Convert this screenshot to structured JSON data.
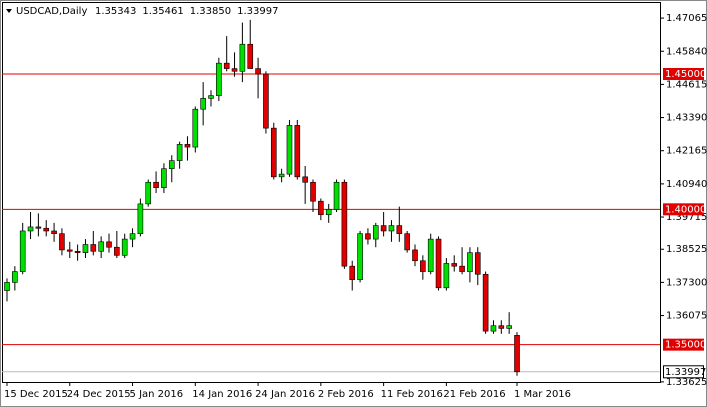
{
  "chart_data": {
    "type": "candlestick",
    "title": "USDCAD,Daily",
    "header_values": [
      "1.35343",
      "1.35461",
      "1.33850",
      "1.33997"
    ],
    "categories": [
      "15 Dec 2015",
      null,
      null,
      null,
      null,
      null,
      null,
      null,
      "24 Dec 2015",
      null,
      null,
      null,
      null,
      null,
      null,
      null,
      "5 Jan 2016",
      null,
      null,
      null,
      null,
      null,
      null,
      null,
      "14 Jan 2016",
      null,
      null,
      null,
      null,
      null,
      null,
      null,
      "24 Jan 2016",
      null,
      null,
      null,
      null,
      null,
      null,
      null,
      "2 Feb 2016",
      null,
      null,
      null,
      null,
      null,
      null,
      null,
      "11 Feb 2016",
      null,
      null,
      null,
      null,
      null,
      null,
      null,
      "21 Feb 2016",
      null,
      null,
      null,
      null,
      null,
      null,
      null,
      null,
      "1 Mar 2016"
    ],
    "open": [
      1.37,
      1.373,
      1.377,
      1.392,
      1.3935,
      1.393,
      1.392,
      1.391,
      1.385,
      1.3845,
      1.384,
      1.387,
      1.3845,
      1.388,
      1.386,
      1.383,
      1.389,
      1.391,
      1.402,
      1.41,
      1.408,
      1.415,
      1.418,
      1.424,
      1.423,
      1.437,
      1.441,
      1.442,
      1.454,
      1.452,
      1.451,
      1.461,
      1.452,
      1.45,
      1.43,
      1.412,
      1.413,
      1.431,
      1.412,
      1.41,
      1.403,
      1.398,
      1.4,
      1.41,
      1.379,
      1.374,
      1.391,
      1.389,
      1.394,
      1.392,
      1.394,
      1.391,
      1.385,
      1.381,
      1.377,
      1.389,
      1.371,
      1.38,
      1.379,
      1.377,
      1.384,
      1.376,
      1.355,
      1.357,
      1.356,
      1.35343
    ],
    "high": [
      1.3745,
      1.379,
      1.395,
      1.399,
      1.3985,
      1.396,
      1.395,
      1.393,
      1.388,
      1.387,
      1.389,
      1.392,
      1.39,
      1.391,
      1.392,
      1.391,
      1.393,
      1.404,
      1.411,
      1.414,
      1.417,
      1.42,
      1.425,
      1.427,
      1.438,
      1.447,
      1.444,
      1.456,
      1.464,
      1.458,
      1.469,
      1.47,
      1.456,
      1.451,
      1.432,
      1.415,
      1.433,
      1.433,
      1.416,
      1.411,
      1.404,
      1.402,
      1.411,
      1.411,
      1.381,
      1.392,
      1.393,
      1.395,
      1.399,
      1.396,
      1.401,
      1.392,
      1.387,
      1.383,
      1.391,
      1.39,
      1.382,
      1.383,
      1.386,
      1.386,
      1.386,
      1.377,
      1.359,
      1.359,
      1.362,
      1.35461
    ],
    "low": [
      1.366,
      1.37,
      1.376,
      1.389,
      1.39,
      1.39,
      1.388,
      1.383,
      1.382,
      1.381,
      1.382,
      1.383,
      1.382,
      1.384,
      1.382,
      1.382,
      1.386,
      1.39,
      1.401,
      1.406,
      1.406,
      1.41,
      1.415,
      1.418,
      1.421,
      1.431,
      1.438,
      1.44,
      1.451,
      1.449,
      1.447,
      1.453,
      1.441,
      1.428,
      1.411,
      1.41,
      1.412,
      1.411,
      1.402,
      1.399,
      1.396,
      1.395,
      1.399,
      1.378,
      1.37,
      1.373,
      1.387,
      1.386,
      1.39,
      1.388,
      1.388,
      1.384,
      1.379,
      1.374,
      1.376,
      1.37,
      1.37,
      1.377,
      1.376,
      1.373,
      1.372,
      1.354,
      1.354,
      1.354,
      1.354,
      1.3385
    ],
    "close": [
      1.373,
      1.377,
      1.392,
      1.3935,
      1.393,
      1.392,
      1.391,
      1.385,
      1.3845,
      1.384,
      1.387,
      1.3845,
      1.388,
      1.386,
      1.383,
      1.389,
      1.391,
      1.402,
      1.41,
      1.408,
      1.415,
      1.418,
      1.424,
      1.423,
      1.437,
      1.441,
      1.442,
      1.454,
      1.452,
      1.451,
      1.461,
      1.452,
      1.45,
      1.43,
      1.412,
      1.413,
      1.431,
      1.412,
      1.41,
      1.403,
      1.398,
      1.4,
      1.41,
      1.379,
      1.374,
      1.391,
      1.389,
      1.394,
      1.392,
      1.394,
      1.391,
      1.385,
      1.381,
      1.377,
      1.389,
      1.371,
      1.38,
      1.379,
      1.377,
      1.384,
      1.376,
      1.355,
      1.357,
      1.356,
      1.357,
      1.33997
    ],
    "up_color": "#00e000",
    "down_color": "#e00000",
    "ylim": [
      1.3362,
      1.4766
    ],
    "yticks": [
      1.47065,
      {
        "value": 1.4584,
        "label": "1.45840"
      },
      1.44615,
      {
        "value": 1.4339,
        "label": "1.43390"
      },
      1.42165,
      {
        "value": 1.4094,
        "label": "1.40940"
      },
      1.39715,
      1.38525,
      {
        "value": 1.373,
        "label": "1.37300"
      },
      1.36075,
      1.33625
    ],
    "levels": [
      {
        "value": 1.45,
        "label": "1.45000"
      },
      {
        "value": 1.4,
        "label": "1.40000"
      },
      {
        "value": 1.35,
        "label": "1.35000"
      }
    ],
    "level_color": "#e00000",
    "last_price": {
      "value": 1.33997,
      "label": "1.33997"
    }
  }
}
